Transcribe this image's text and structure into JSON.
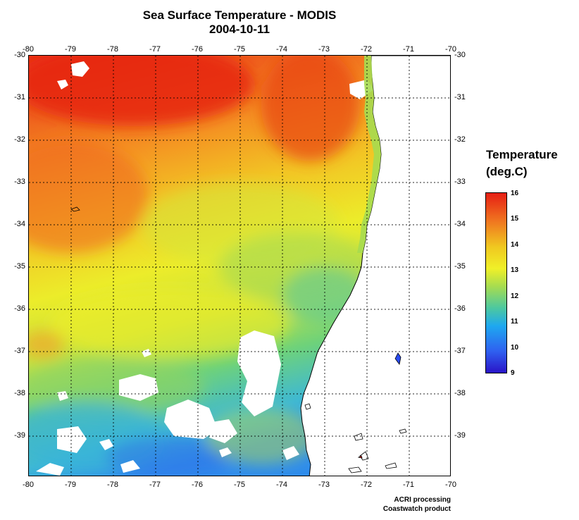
{
  "title_line1": "Sea Surface Temperature - MODIS",
  "title_line2": "2004-10-11",
  "lon_ticks": [
    "-80",
    "-79",
    "-78",
    "-77",
    "-76",
    "-75",
    "-74",
    "-73",
    "-72",
    "-71",
    "-70"
  ],
  "lat_ticks": [
    "-30",
    "-31",
    "-32",
    "-33",
    "-34",
    "-35",
    "-36",
    "-37",
    "-38",
    "-39"
  ],
  "legend": {
    "title_line1": "Temperature",
    "title_line2": "(deg.C)",
    "ticks": [
      "16",
      "15",
      "14",
      "13",
      "12",
      "11",
      "10",
      "9"
    ],
    "min": 9,
    "max": 16
  },
  "credits": {
    "line1": "ACRI processing",
    "line2": "Coastwatch product"
  },
  "colors": {
    "warm": "#e61e14",
    "orange": "#f07820",
    "yellow": "#f0f028",
    "green": "#a6dc50",
    "cyan": "#1ea8f0",
    "blue": "#2a14c8",
    "land": "#ffffff",
    "coastline": "#000000"
  }
}
